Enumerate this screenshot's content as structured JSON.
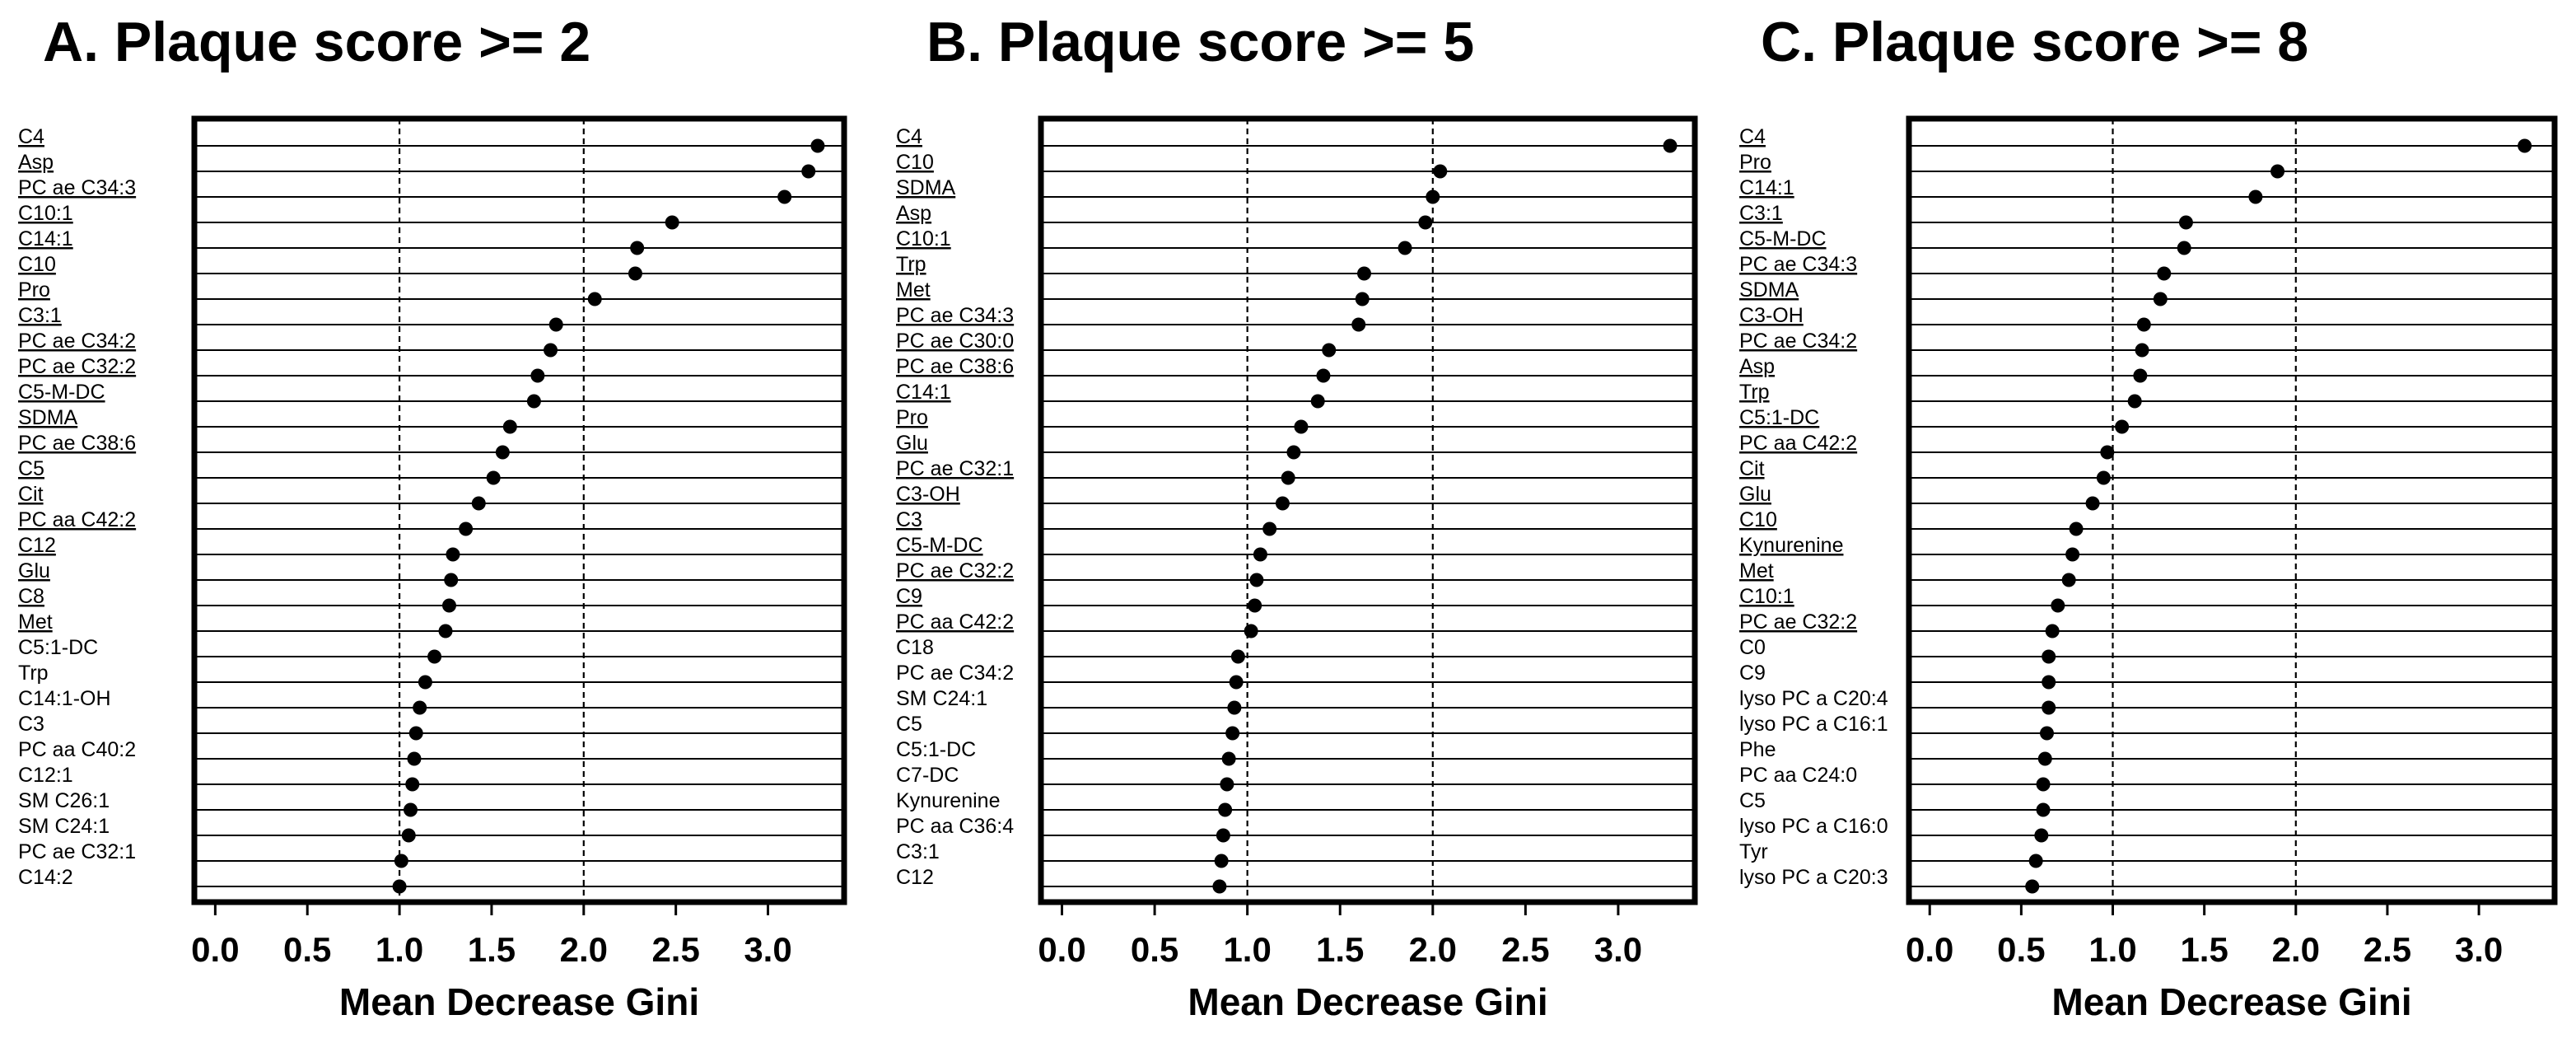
{
  "chart_data": [
    {
      "type": "dot",
      "title": "A. Plaque score >= 2",
      "xlabel": "Mean Decrease Gini",
      "xlim": [
        -0.1,
        3.4
      ],
      "xticks": [
        "0.0",
        "0.5",
        "1.0",
        "1.5",
        "2.0",
        "2.5",
        "3.0"
      ],
      "reference_lines": [
        1.0,
        2.0
      ],
      "grid": "horizontal row lines",
      "labels": [
        "C4",
        "Asp",
        "PC ae C34:3",
        "C10:1",
        "C14:1",
        "C10",
        "Pro",
        "C3:1",
        "PC ae C34:2",
        "PC ae C32:2",
        "C5-M-DC",
        "SDMA",
        "PC ae C38:6",
        "C5",
        "Cit",
        "PC aa C42:2",
        "C12",
        "Glu",
        "C8",
        "Met",
        "C5:1-DC",
        "Trp",
        "C14:1-OH",
        "C3",
        "PC aa C40:2",
        "C12:1",
        "SM C26:1",
        "SM C24:1",
        "PC ae C32:1",
        "C14:2"
      ],
      "underlined": [
        true,
        true,
        true,
        true,
        true,
        true,
        true,
        true,
        true,
        true,
        true,
        true,
        true,
        true,
        true,
        true,
        true,
        true,
        true,
        true,
        false,
        false,
        false,
        false,
        false,
        false,
        false,
        false,
        false,
        false
      ],
      "values": [
        3.27,
        3.22,
        3.09,
        2.48,
        2.29,
        2.28,
        2.06,
        1.85,
        1.82,
        1.75,
        1.73,
        1.6,
        1.56,
        1.51,
        1.43,
        1.36,
        1.29,
        1.28,
        1.27,
        1.25,
        1.19,
        1.14,
        1.11,
        1.09,
        1.08,
        1.07,
        1.06,
        1.05,
        1.01,
        1.0
      ]
    },
    {
      "type": "dot",
      "title": "B. Plaque score >= 5",
      "xlabel": "Mean Decrease Gini",
      "xlim": [
        -0.1,
        3.4
      ],
      "xticks": [
        "0.0",
        "0.5",
        "1.0",
        "1.5",
        "2.0",
        "2.5",
        "3.0"
      ],
      "reference_lines": [
        1.0,
        2.0
      ],
      "grid": "horizontal row lines",
      "labels": [
        "C4",
        "C10",
        "SDMA",
        "Asp",
        "C10:1",
        "Trp",
        "Met",
        "PC ae C34:3",
        "PC ae C30:0",
        "PC ae C38:6",
        "C14:1",
        "Pro",
        "Glu",
        "PC ae C32:1",
        "C3-OH",
        "C3",
        "C5-M-DC",
        "PC ae C32:2",
        "C9",
        "PC aa C42:2",
        "C18",
        "PC ae C34:2",
        "SM C24:1",
        "C5",
        "C5:1-DC",
        "C7-DC",
        "Kynurenine",
        "PC aa C36:4",
        "C3:1",
        "C12"
      ],
      "underlined": [
        true,
        true,
        true,
        true,
        true,
        true,
        true,
        true,
        true,
        true,
        true,
        true,
        true,
        true,
        true,
        true,
        true,
        true,
        true,
        true,
        false,
        false,
        false,
        false,
        false,
        false,
        false,
        false,
        false,
        false
      ],
      "values": [
        3.28,
        2.04,
        2.0,
        1.96,
        1.85,
        1.63,
        1.62,
        1.6,
        1.44,
        1.41,
        1.38,
        1.29,
        1.25,
        1.22,
        1.19,
        1.12,
        1.07,
        1.05,
        1.04,
        1.02,
        0.95,
        0.94,
        0.93,
        0.92,
        0.9,
        0.89,
        0.88,
        0.87,
        0.86,
        0.85
      ]
    },
    {
      "type": "dot",
      "title": "C. Plaque score >= 8",
      "xlabel": "Mean Decrease Gini",
      "xlim": [
        -0.1,
        3.4
      ],
      "xticks": [
        "0.0",
        "0.5",
        "1.0",
        "1.5",
        "2.0",
        "2.5",
        "3.0"
      ],
      "reference_lines": [
        1.0,
        2.0
      ],
      "grid": "horizontal row lines",
      "labels": [
        "C4",
        "Pro",
        "C14:1",
        "C3:1",
        "C5-M-DC",
        "PC ae C34:3",
        "SDMA",
        "C3-OH",
        "PC ae C34:2",
        "Asp",
        "Trp",
        "C5:1-DC",
        "PC aa C42:2",
        "Cit",
        "Glu",
        "C10",
        "Kynurenine",
        "Met",
        "C10:1",
        "PC ae C32:2",
        "C0",
        "C9",
        "lyso PC a C20:4",
        "lyso PC a C16:1",
        "Phe",
        "PC aa C24:0",
        "C5",
        "lyso PC a C16:0",
        "Tyr",
        "lyso PC a C20:3"
      ],
      "underlined": [
        true,
        true,
        true,
        true,
        true,
        true,
        true,
        true,
        true,
        true,
        true,
        true,
        true,
        true,
        true,
        true,
        true,
        true,
        true,
        true,
        false,
        false,
        false,
        false,
        false,
        false,
        false,
        false,
        false,
        false
      ],
      "values": [
        3.25,
        1.9,
        1.78,
        1.4,
        1.39,
        1.28,
        1.26,
        1.17,
        1.16,
        1.15,
        1.12,
        1.05,
        0.97,
        0.95,
        0.89,
        0.8,
        0.78,
        0.76,
        0.7,
        0.67,
        0.65,
        0.65,
        0.65,
        0.64,
        0.63,
        0.62,
        0.62,
        0.61,
        0.58,
        0.56
      ]
    }
  ]
}
